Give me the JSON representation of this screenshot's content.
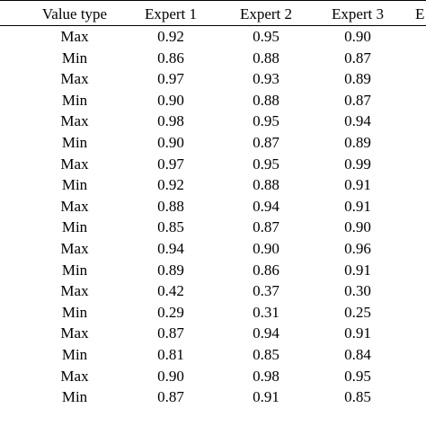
{
  "table": {
    "headers": [
      "Value type",
      "Expert 1",
      "Expert 2",
      "Expert 3",
      "E"
    ],
    "rows": [
      [
        "Max",
        "0.92",
        "0.95",
        "0.90"
      ],
      [
        "Min",
        "0.86",
        "0.88",
        "0.87"
      ],
      [
        "Max",
        "0.97",
        "0.93",
        "0.89"
      ],
      [
        "Min",
        "0.90",
        "0.88",
        "0.87"
      ],
      [
        "Max",
        "0.98",
        "0.95",
        "0.94"
      ],
      [
        "Min",
        "0.90",
        "0.87",
        "0.89"
      ],
      [
        "Max",
        "0.97",
        "0.95",
        "0.99"
      ],
      [
        "Min",
        "0.92",
        "0.88",
        "0.91"
      ],
      [
        "Max",
        "0.88",
        "0.94",
        "0.91"
      ],
      [
        "Min",
        "0.85",
        "0.87",
        "0.90"
      ],
      [
        "Max",
        "0.94",
        "0.90",
        "0.96"
      ],
      [
        "Min",
        "0.89",
        "0.86",
        "0.91"
      ],
      [
        "Max",
        "0.42",
        "0.37",
        "0.30"
      ],
      [
        "Min",
        "0.29",
        "0.31",
        "0.25"
      ],
      [
        "Max",
        "0.87",
        "0.94",
        "0.91"
      ],
      [
        "Min",
        "0.81",
        "0.85",
        "0.84"
      ],
      [
        "Max",
        "0.90",
        "0.98",
        "0.95"
      ],
      [
        "Min",
        "0.87",
        "0.91",
        "0.85"
      ]
    ]
  }
}
